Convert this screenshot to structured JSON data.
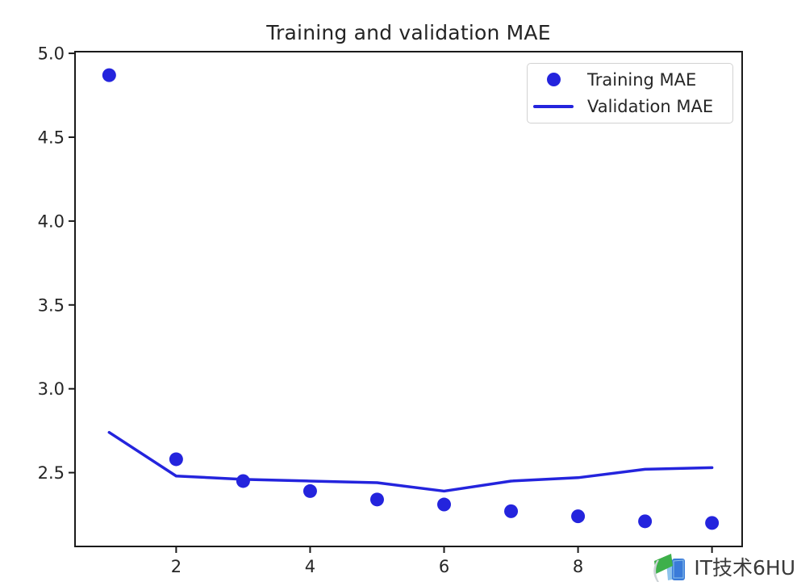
{
  "chart_data": {
    "type": "line",
    "title": "Training and validation MAE",
    "xlabel": "",
    "ylabel": "",
    "x": [
      1,
      2,
      3,
      4,
      5,
      6,
      7,
      8,
      9,
      10
    ],
    "series": [
      {
        "name": "Training MAE",
        "plot_style": "scatter",
        "marker": "circle",
        "marker_radius": 8.5,
        "color": "#2424dd",
        "values": [
          4.87,
          2.58,
          2.45,
          2.39,
          2.34,
          2.31,
          2.27,
          2.24,
          2.21,
          2.2
        ]
      },
      {
        "name": "Validation MAE",
        "plot_style": "line",
        "line_width": 3.5,
        "color": "#2424dd",
        "values": [
          2.74,
          2.48,
          2.46,
          2.45,
          2.44,
          2.39,
          2.45,
          2.47,
          2.52,
          2.53
        ]
      }
    ],
    "xlim": [
      0.49,
      10.45
    ],
    "ylim": [
      2.06,
      5.01
    ],
    "xticks": [
      {
        "value": 2,
        "label": "2"
      },
      {
        "value": 4,
        "label": "4"
      },
      {
        "value": 6,
        "label": "6"
      },
      {
        "value": 8,
        "label": "8"
      },
      {
        "value": 10,
        "label": ""
      }
    ],
    "yticks": [
      {
        "value": 2.5,
        "label": "2.5"
      },
      {
        "value": 3.0,
        "label": "3.0"
      },
      {
        "value": 3.5,
        "label": "3.5"
      },
      {
        "value": 4.0,
        "label": "4.0"
      },
      {
        "value": 4.5,
        "label": "4.5"
      },
      {
        "value": 5.0,
        "label": "5.0"
      }
    ],
    "grid": false,
    "legend_position": "upper right"
  },
  "legend": {
    "markers": [
      "dot",
      "line"
    ]
  },
  "watermark": {
    "paren": "(",
    "text": "IT技术6HU",
    "logo": "book-flag-logo"
  },
  "colors": {
    "series_blue": "#2424dd",
    "spine": "#1a1a1a",
    "tick_text": "#262626",
    "title_text": "#242424",
    "legend_border": "#d2d2d2",
    "watermark_text": "#3a3a3a",
    "logo_green": "#3eb04a",
    "logo_blue": "#3a7bd9",
    "logo_lightblue": "#8fc3ec"
  }
}
